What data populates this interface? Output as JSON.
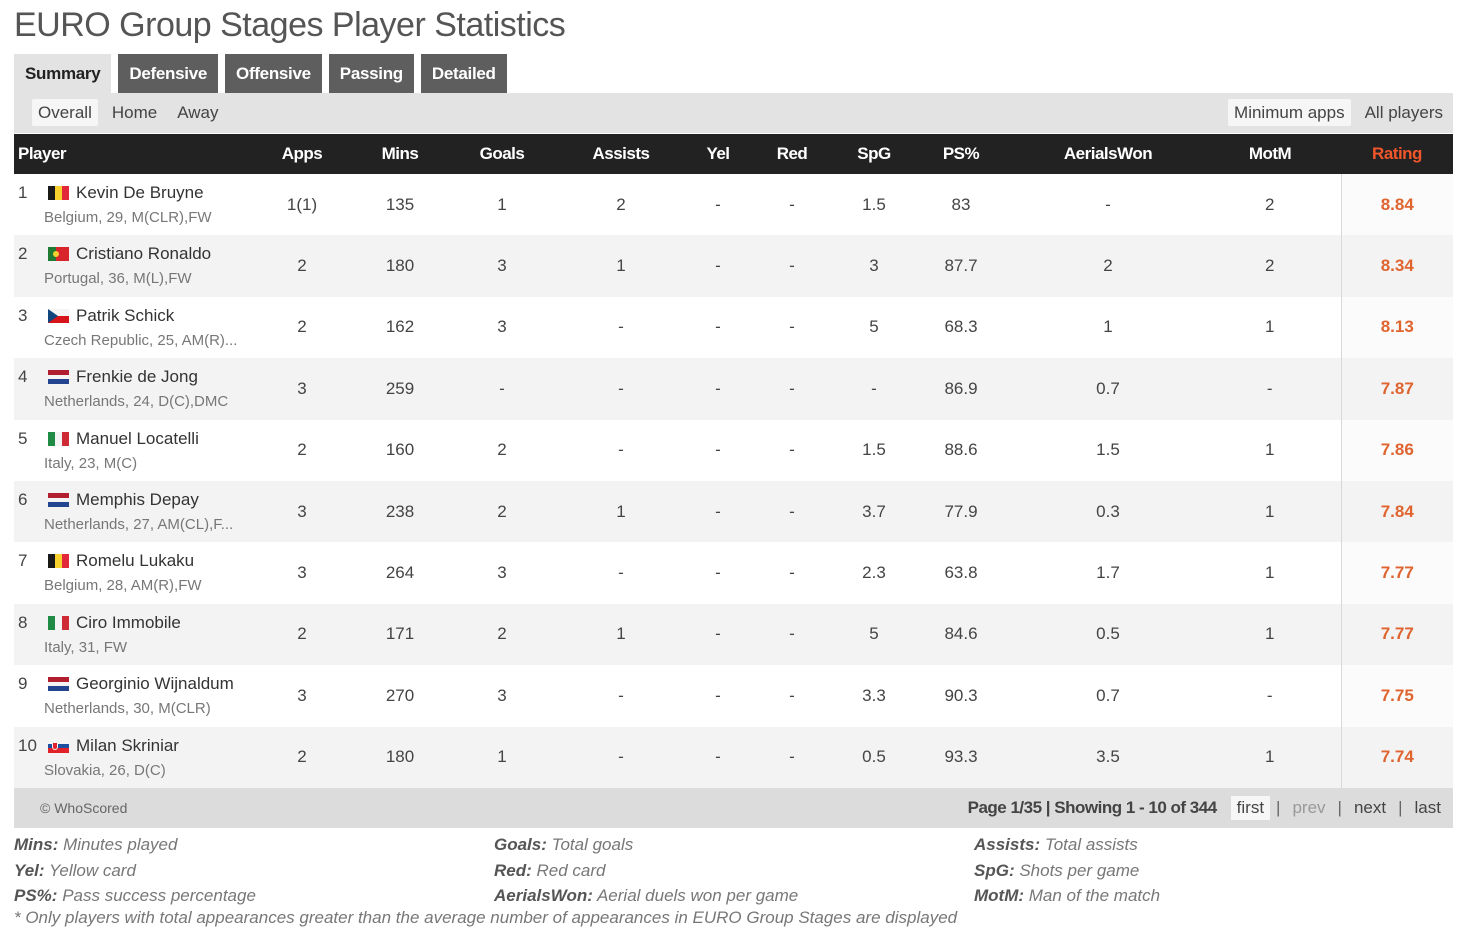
{
  "title": "EURO Group Stages Player Statistics",
  "tabs": [
    "Summary",
    "Defensive",
    "Offensive",
    "Passing",
    "Detailed"
  ],
  "filters": {
    "left": [
      "Overall",
      "Home",
      "Away"
    ],
    "right": [
      "Minimum apps",
      "All players"
    ]
  },
  "headers": [
    "Player",
    "Apps",
    "Mins",
    "Goals",
    "Assists",
    "Yel",
    "Red",
    "SpG",
    "PS%",
    "AerialsWon",
    "MotM",
    "Rating"
  ],
  "players": [
    {
      "rank": "1",
      "name": "Kevin De Bruyne",
      "flag": "belgium-flag",
      "meta": "Belgium,  29, M(CLR),FW",
      "stats": [
        "1(1)",
        "135",
        "1",
        "2",
        "-",
        "-",
        "1.5",
        "83",
        "-",
        "2"
      ],
      "rating": "8.84"
    },
    {
      "rank": "2",
      "name": "Cristiano Ronaldo",
      "flag": "portugal-flag",
      "meta": "Portugal,  36, M(L),FW",
      "stats": [
        "2",
        "180",
        "3",
        "1",
        "-",
        "-",
        "3",
        "87.7",
        "2",
        "2"
      ],
      "rating": "8.34"
    },
    {
      "rank": "3",
      "name": "Patrik Schick",
      "flag": "czech-republic-flag",
      "meta": "Czech Republic,  25, AM(R)...",
      "stats": [
        "2",
        "162",
        "3",
        "-",
        "-",
        "-",
        "5",
        "68.3",
        "1",
        "1"
      ],
      "rating": "8.13"
    },
    {
      "rank": "4",
      "name": "Frenkie de Jong",
      "flag": "netherlands-flag",
      "meta": "Netherlands,  24, D(C),DMC",
      "stats": [
        "3",
        "259",
        "-",
        "-",
        "-",
        "-",
        "-",
        "86.9",
        "0.7",
        "-"
      ],
      "rating": "7.87"
    },
    {
      "rank": "5",
      "name": "Manuel Locatelli",
      "flag": "italy-flag",
      "meta": "Italy,  23, M(C)",
      "stats": [
        "2",
        "160",
        "2",
        "-",
        "-",
        "-",
        "1.5",
        "88.6",
        "1.5",
        "1"
      ],
      "rating": "7.86"
    },
    {
      "rank": "6",
      "name": "Memphis Depay",
      "flag": "netherlands-flag",
      "meta": "Netherlands,  27, AM(CL),F...",
      "stats": [
        "3",
        "238",
        "2",
        "1",
        "-",
        "-",
        "3.7",
        "77.9",
        "0.3",
        "1"
      ],
      "rating": "7.84"
    },
    {
      "rank": "7",
      "name": "Romelu Lukaku",
      "flag": "belgium-flag",
      "meta": "Belgium,  28, AM(R),FW",
      "stats": [
        "3",
        "264",
        "3",
        "-",
        "-",
        "-",
        "2.3",
        "63.8",
        "1.7",
        "1"
      ],
      "rating": "7.77"
    },
    {
      "rank": "8",
      "name": "Ciro Immobile",
      "flag": "italy-flag",
      "meta": "Italy,  31, FW",
      "stats": [
        "2",
        "171",
        "2",
        "1",
        "-",
        "-",
        "5",
        "84.6",
        "0.5",
        "1"
      ],
      "rating": "7.77"
    },
    {
      "rank": "9",
      "name": "Georginio Wijnaldum",
      "flag": "netherlands-flag",
      "meta": "Netherlands,  30, M(CLR)",
      "stats": [
        "3",
        "270",
        "3",
        "-",
        "-",
        "-",
        "3.3",
        "90.3",
        "0.7",
        "-"
      ],
      "rating": "7.75"
    },
    {
      "rank": "10",
      "name": "Milan Skriniar",
      "flag": "slovakia-flag",
      "meta": "Slovakia,  26, D(C)",
      "stats": [
        "2",
        "180",
        "1",
        "-",
        "-",
        "-",
        "0.5",
        "93.3",
        "3.5",
        "1"
      ],
      "rating": "7.74"
    }
  ],
  "footer": {
    "copyright": "© WhoScored",
    "page_info": "Page 1/35 | Showing 1 - 10 of 344",
    "first": "first",
    "prev": "prev",
    "next": "next",
    "last": "last",
    "separator": "|"
  },
  "legend": [
    [
      {
        "abbr": "Mins:",
        "desc": " Minutes played"
      },
      {
        "abbr": "Yel:",
        "desc": " Yellow card"
      },
      {
        "abbr": "PS%:",
        "desc": " Pass success percentage"
      }
    ],
    [
      {
        "abbr": "Goals:",
        "desc": " Total goals"
      },
      {
        "abbr": "Red:",
        "desc": " Red card"
      },
      {
        "abbr": "AerialsWon:",
        "desc": " Aerial duels won per game"
      }
    ],
    [
      {
        "abbr": "Assists:",
        "desc": " Total assists"
      },
      {
        "abbr": "SpG:",
        "desc": " Shots per game"
      },
      {
        "abbr": "MotM:",
        "desc": " Man of the match"
      }
    ]
  ],
  "note": "* Only players with total appearances greater than the average number of appearances in EURO Group Stages are displayed",
  "colors": {
    "rating": "#e0642f",
    "header_bg": "#222222",
    "tab_bg": "#5e5e5e"
  }
}
